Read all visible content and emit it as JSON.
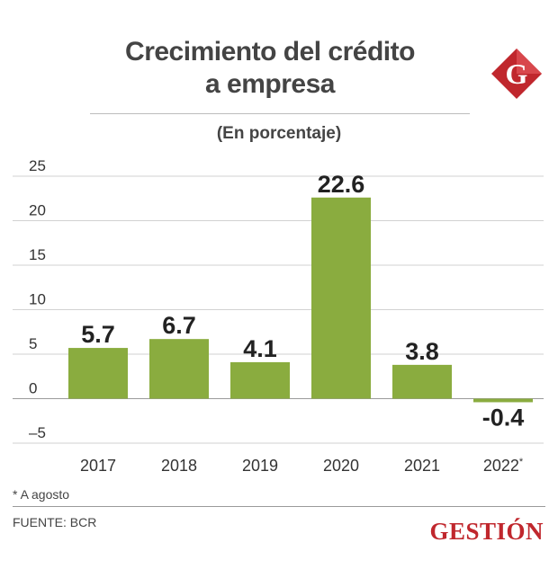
{
  "header": {
    "title_line1": "Crecimiento del crédito",
    "title_line2": "a empresa",
    "subtitle": "(En porcentaje)"
  },
  "logo": {
    "letter": "G",
    "icon": "gestion-g-logo",
    "color": "#c0272d"
  },
  "chart_data": {
    "type": "bar",
    "categories": [
      "2017",
      "2018",
      "2019",
      "2020",
      "2021",
      "2022*"
    ],
    "values": [
      5.7,
      6.7,
      4.1,
      22.6,
      3.8,
      -0.4
    ],
    "value_labels": [
      "5.7",
      "6.7",
      "4.1",
      "22.6",
      "3.8",
      "-0.4"
    ],
    "yticks": [
      25,
      20,
      15,
      10,
      5,
      0,
      -5
    ],
    "ytick_labels": [
      "25",
      "20",
      "15",
      "10",
      "5",
      "0",
      "–5"
    ],
    "ylim": [
      -5,
      25
    ],
    "grid": true,
    "legend": "none",
    "bar_color": "#8aac3f",
    "title": "Crecimiento del crédito a empresa",
    "ylabel": "(En porcentaje)",
    "xlabel": ""
  },
  "footer": {
    "note": "* A agosto",
    "source": "FUENTE: BCR",
    "brand": "GESTIÓN"
  }
}
